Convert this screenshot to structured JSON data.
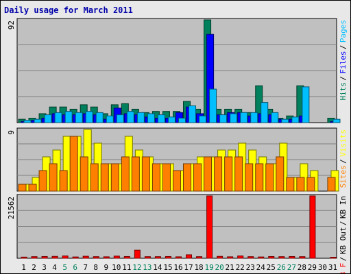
{
  "chart_data": [
    {
      "type": "bar",
      "title": "Daily usage for March 2011",
      "categories": [
        "1",
        "2",
        "3",
        "4",
        "5",
        "6",
        "7",
        "8",
        "9",
        "10",
        "11",
        "12",
        "13",
        "14",
        "15",
        "16",
        "17",
        "18",
        "19",
        "20",
        "21",
        "22",
        "23",
        "24",
        "25",
        "26",
        "27",
        "28",
        "29",
        "30",
        "31"
      ],
      "weekend_days": [
        "5",
        "6",
        "12",
        "13",
        "19",
        "20",
        "26",
        "27"
      ],
      "ymax_label": "92",
      "ylim": [
        0,
        92
      ],
      "legend": [
        "Pages",
        "Files",
        "Hits"
      ],
      "series": [
        {
          "name": "Hits",
          "color": "#00805c",
          "values": [
            3,
            4,
            8,
            14,
            14,
            12,
            16,
            14,
            8,
            16,
            17,
            12,
            9,
            10,
            10,
            10,
            19,
            12,
            92,
            12,
            12,
            12,
            9,
            33,
            12,
            4,
            6,
            33,
            0,
            0,
            4
          ]
        },
        {
          "name": "Files",
          "color": "#0000ff",
          "values": [
            1,
            2,
            4,
            8,
            7,
            7,
            8,
            7,
            3,
            13,
            8,
            7,
            5,
            4,
            4,
            9,
            14,
            8,
            79,
            7,
            9,
            9,
            6,
            8,
            7,
            3,
            3,
            6,
            0,
            0,
            1
          ]
        },
        {
          "name": "Pages",
          "color": "#00bfff",
          "values": [
            2,
            3,
            7,
            9,
            10,
            9,
            10,
            9,
            6,
            7,
            10,
            9,
            8,
            7,
            5,
            4,
            15,
            6,
            30,
            7,
            8,
            9,
            9,
            18,
            9,
            3,
            5,
            32,
            0,
            0,
            3
          ]
        }
      ]
    },
    {
      "type": "bar",
      "categories": [
        "1",
        "2",
        "3",
        "4",
        "5",
        "6",
        "7",
        "8",
        "9",
        "10",
        "11",
        "12",
        "13",
        "14",
        "15",
        "16",
        "17",
        "18",
        "19",
        "20",
        "21",
        "22",
        "23",
        "24",
        "25",
        "26",
        "27",
        "28",
        "29",
        "30",
        "31"
      ],
      "ymax_label": "9",
      "ylim": [
        0,
        9
      ],
      "legend": [
        "Visits",
        "Sites"
      ],
      "series": [
        {
          "name": "Visits",
          "color": "#ffff00",
          "values": [
            1,
            2,
            5,
            6,
            8,
            8,
            9,
            7,
            4,
            4,
            8,
            6,
            5,
            4,
            4,
            3,
            4,
            5,
            5,
            6,
            6,
            7,
            6,
            5,
            4,
            7,
            2,
            4,
            3,
            0,
            3
          ]
        },
        {
          "name": "Sites",
          "color": "#ff8000",
          "values": [
            1,
            1,
            3,
            4,
            3,
            8,
            5,
            4,
            4,
            4,
            5,
            5,
            5,
            4,
            4,
            3,
            4,
            4,
            5,
            5,
            5,
            5,
            4,
            4,
            4,
            5,
            2,
            2,
            2,
            0,
            2
          ]
        }
      ]
    },
    {
      "type": "bar",
      "categories": [
        "1",
        "2",
        "3",
        "4",
        "5",
        "6",
        "7",
        "8",
        "9",
        "10",
        "11",
        "12",
        "13",
        "14",
        "15",
        "16",
        "17",
        "18",
        "19",
        "20",
        "21",
        "22",
        "23",
        "24",
        "25",
        "26",
        "27",
        "28",
        "29",
        "30",
        "31"
      ],
      "ymax_label": "21562",
      "ylim": [
        0,
        21562
      ],
      "legend": [
        "KB In",
        "KB Out",
        "KB F"
      ],
      "series": [
        {
          "name": "KB F",
          "color": "#ff0000",
          "values": [
            400,
            550,
            600,
            650,
            800,
            450,
            700,
            550,
            500,
            750,
            600,
            2800,
            550,
            550,
            600,
            500,
            1200,
            550,
            21562,
            650,
            500,
            800,
            550,
            450,
            600,
            550,
            600,
            550,
            21562,
            0,
            350
          ]
        }
      ]
    }
  ]
}
